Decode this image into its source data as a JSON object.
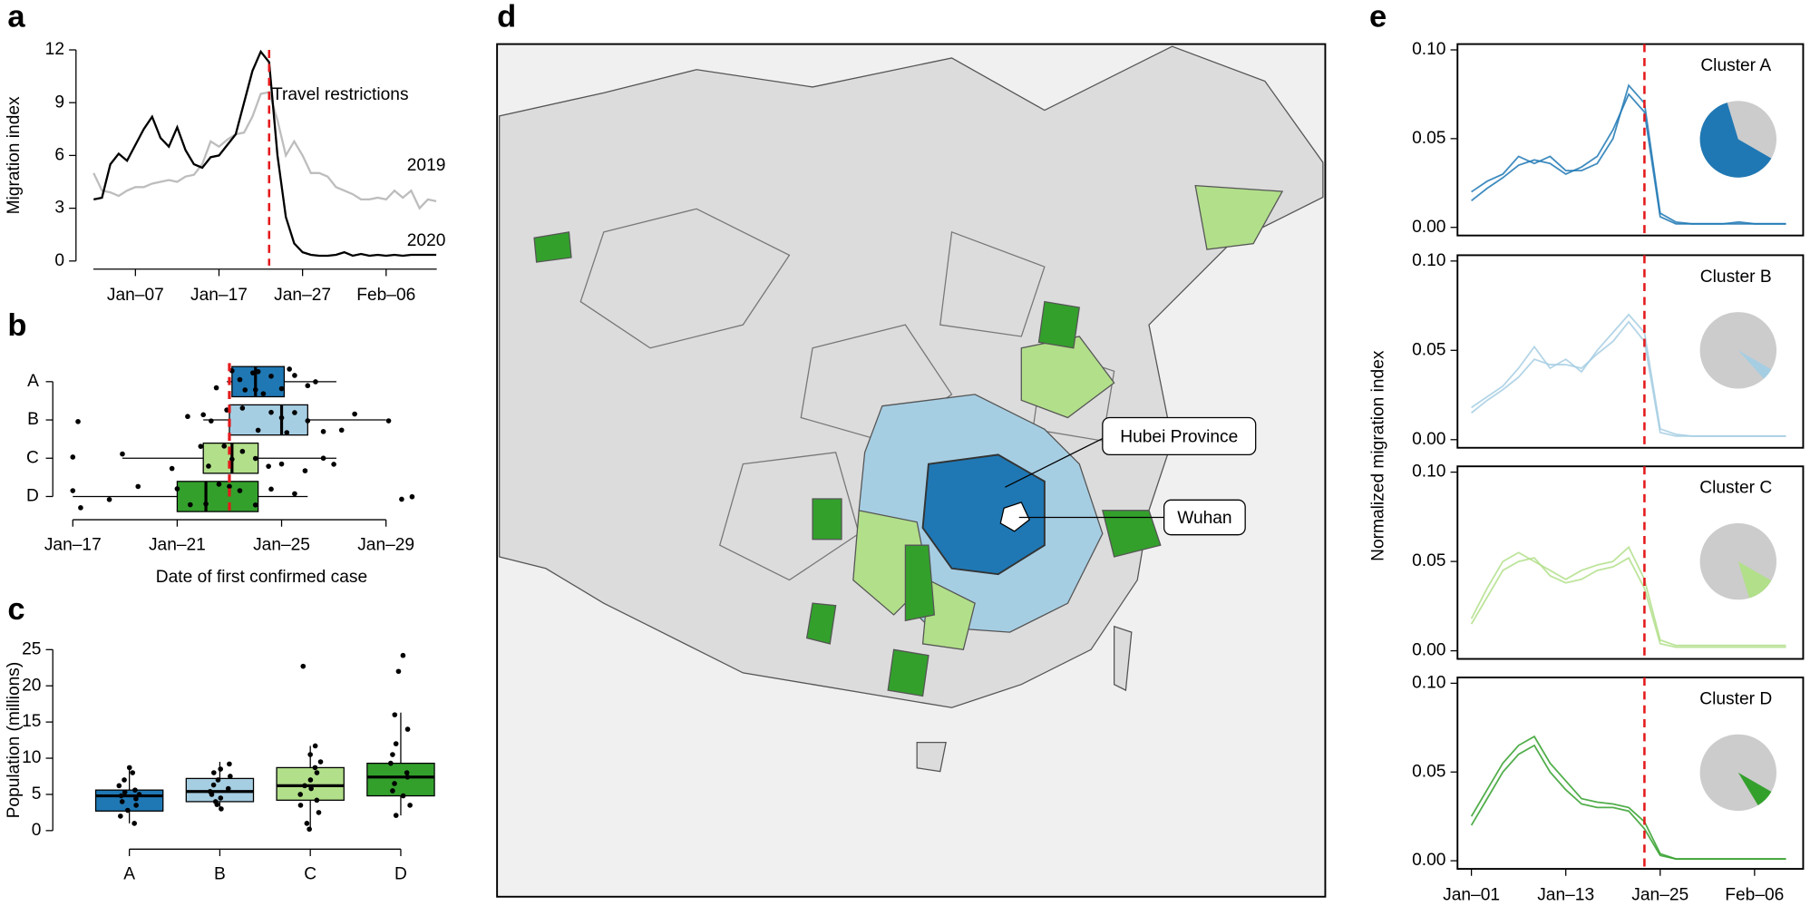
{
  "chart_data": [
    {
      "type": "line",
      "panel": "a",
      "ylabel": "Migration index",
      "xlim": [
        1,
        45
      ],
      "xticks": [
        {
          "value": 7,
          "label": "Jan–07"
        },
        {
          "value": 17,
          "label": "Jan–17"
        },
        {
          "value": 27,
          "label": "Jan–27"
        },
        {
          "value": 37,
          "label": "Feb–06"
        }
      ],
      "ylim": [
        0,
        12
      ],
      "yticks": [
        0,
        3,
        6,
        9,
        12
      ],
      "x": [
        2,
        3,
        4,
        5,
        6,
        7,
        8,
        9,
        10,
        11,
        12,
        13,
        14,
        15,
        16,
        17,
        18,
        19,
        20,
        21,
        22,
        23,
        24,
        25,
        26,
        27,
        28,
        29,
        30,
        31,
        32,
        33,
        34,
        35,
        36,
        37,
        38,
        39,
        40,
        41,
        42,
        43
      ],
      "series": [
        {
          "name": "2019",
          "color": "#bdbdbd",
          "values": [
            5.0,
            4.0,
            3.9,
            3.7,
            4.0,
            4.2,
            4.2,
            4.4,
            4.5,
            4.6,
            4.5,
            4.8,
            4.9,
            5.5,
            6.8,
            6.5,
            6.9,
            7.2,
            7.3,
            8.2,
            9.5,
            9.6,
            8.0,
            6.0,
            6.8,
            6.0,
            5.0,
            5.0,
            4.8,
            4.2,
            4.0,
            3.8,
            3.5,
            3.5,
            3.6,
            3.5,
            4.0,
            3.6,
            4.0,
            3.0,
            3.5,
            3.4
          ]
        },
        {
          "name": "2020",
          "color": "#000000",
          "values": [
            3.5,
            3.6,
            5.5,
            6.1,
            5.7,
            6.6,
            7.5,
            8.2,
            7.0,
            6.5,
            7.6,
            6.3,
            5.5,
            5.3,
            5.9,
            6.0,
            6.6,
            7.2,
            9.0,
            10.8,
            11.9,
            11.3,
            6.0,
            2.5,
            1.0,
            0.5,
            0.35,
            0.3,
            0.3,
            0.35,
            0.5,
            0.3,
            0.4,
            0.3,
            0.35,
            0.3,
            0.35,
            0.3,
            0.35,
            0.35,
            0.35,
            0.35
          ]
        }
      ],
      "vline": {
        "x": 23,
        "color": "#e41a1c",
        "label": "Travel restrictions"
      }
    },
    {
      "type": "boxplot",
      "orientation": "horizontal",
      "panel": "b",
      "categories": [
        "A",
        "B",
        "C",
        "D"
      ],
      "colors": [
        "#1f78b4",
        "#a6cee3",
        "#b2df8a",
        "#33a02c"
      ],
      "boxes": [
        {
          "whislo": 22.9,
          "q1": 23.1,
          "med": 24.0,
          "q3": 25.1,
          "whishi": 27.1
        },
        {
          "whislo": 22.0,
          "q1": 23.0,
          "med": 25.0,
          "q3": 26.0,
          "whishi": 29.0
        },
        {
          "whislo": 18.9,
          "q1": 22.0,
          "med": 23.1,
          "q3": 24.1,
          "whishi": 27.1
        },
        {
          "whislo": 17.0,
          "q1": 21.0,
          "med": 22.1,
          "q3": 24.1,
          "whishi": 26.0
        }
      ],
      "points": [
        [
          22.5,
          23.1,
          23.4,
          23.6,
          23.9,
          24.0,
          24.1,
          24.3,
          24.6,
          25.0,
          25.3,
          25.5,
          26.0,
          26.3
        ],
        [
          17.2,
          21.4,
          22.0,
          22.3,
          22.9,
          23.5,
          24.1,
          24.6,
          25.0,
          25.2,
          25.5,
          26.0,
          26.6,
          27.3,
          27.8,
          29.1
        ],
        [
          17.0,
          18.9,
          20.8,
          21.9,
          22.2,
          22.8,
          23.1,
          23.5,
          24.0,
          24.5,
          25.0,
          25.9,
          26.6,
          27.0
        ],
        [
          17.0,
          17.3,
          18.4,
          19.5,
          21.0,
          21.5,
          22.1,
          22.6,
          23.0,
          23.4,
          24.0,
          24.6,
          25.5,
          29.6,
          30.0
        ]
      ],
      "xlim": [
        16.5,
        30.5
      ],
      "xticks": [
        {
          "value": 17,
          "label": "Jan–17"
        },
        {
          "value": 21,
          "label": "Jan–21"
        },
        {
          "value": 25,
          "label": "Jan–25"
        },
        {
          "value": 29,
          "label": "Jan–29"
        }
      ],
      "xlabel": "Date of first confirmed case",
      "vline": {
        "x": 23,
        "color": "#e41a1c"
      }
    },
    {
      "type": "boxplot",
      "orientation": "vertical",
      "panel": "c",
      "categories": [
        "A",
        "B",
        "C",
        "D"
      ],
      "colors": [
        "#1f78b4",
        "#a6cee3",
        "#b2df8a",
        "#33a02c"
      ],
      "boxes": [
        {
          "whislo": 1.0,
          "q1": 2.7,
          "med": 4.8,
          "q3": 5.6,
          "whishi": 8.7
        },
        {
          "whislo": 3.0,
          "q1": 4.0,
          "med": 5.4,
          "q3": 7.2,
          "whishi": 9.5
        },
        {
          "whislo": 0.2,
          "q1": 4.2,
          "med": 6.2,
          "q3": 8.7,
          "whishi": 11.7
        },
        {
          "whislo": 2.1,
          "q1": 4.8,
          "med": 7.4,
          "q3": 9.3,
          "whishi": 16.3
        }
      ],
      "points": [
        [
          1.0,
          2.0,
          2.8,
          3.5,
          4.0,
          4.4,
          4.8,
          5.0,
          5.3,
          5.6,
          6.2,
          7.0,
          8.0,
          8.7
        ],
        [
          3.0,
          3.6,
          4.0,
          4.5,
          5.0,
          5.4,
          5.8,
          6.3,
          7.0,
          7.5,
          8.0,
          8.5,
          9.2
        ],
        [
          0.2,
          1.0,
          2.5,
          3.5,
          4.2,
          5.0,
          5.8,
          6.2,
          7.0,
          8.0,
          8.7,
          9.5,
          10.5,
          11.7,
          22.7
        ],
        [
          2.1,
          3.5,
          4.8,
          5.5,
          6.5,
          7.4,
          8.0,
          9.3,
          10.5,
          12.0,
          14.0,
          16.0,
          22.0,
          24.2
        ]
      ],
      "ylim": [
        0,
        25
      ],
      "yticks": [
        0,
        5,
        10,
        15,
        20,
        25
      ],
      "ylabel": "Population (millions)"
    },
    {
      "type": "map",
      "panel": "d",
      "annotations": [
        "Hubei Province",
        "Wuhan"
      ]
    },
    {
      "type": "line",
      "panel": "e",
      "title": "Cluster A",
      "ylabel": "Normalized migration index",
      "xlim": [
        1,
        42
      ],
      "ylim": [
        0,
        0.1
      ],
      "yticks": [
        {
          "value": 0,
          "label": "0.00"
        },
        {
          "value": 0.05,
          "label": "0.05"
        },
        {
          "value": 0.1,
          "label": "0.10"
        }
      ],
      "x": [
        1,
        3,
        5,
        7,
        9,
        11,
        13,
        15,
        17,
        19,
        21,
        23,
        25,
        27,
        29,
        31,
        33,
        35,
        37,
        39,
        41
      ],
      "series": [
        {
          "color": "#1f78b4",
          "values": [
            0.02,
            0.026,
            0.03,
            0.04,
            0.036,
            0.04,
            0.032,
            0.032,
            0.036,
            0.05,
            0.08,
            0.07,
            0.008,
            0.003,
            0.002,
            0.002,
            0.002,
            0.003,
            0.002,
            0.002,
            0.002
          ]
        },
        {
          "color": "#1f78b4",
          "values": [
            0.015,
            0.022,
            0.028,
            0.035,
            0.038,
            0.036,
            0.03,
            0.034,
            0.04,
            0.055,
            0.075,
            0.065,
            0.006,
            0.002,
            0.002,
            0.002,
            0.002,
            0.002,
            0.002,
            0.002,
            0.002
          ]
        }
      ],
      "vline": {
        "x": 23,
        "color": "#e41a1c"
      },
      "pie_share": 62,
      "pie_colors": [
        "#1f78b4",
        "#cccccc"
      ]
    },
    {
      "type": "line",
      "title": "Cluster B",
      "xlim": [
        1,
        42
      ],
      "ylim": [
        0,
        0.1
      ],
      "yticks": [
        {
          "value": 0,
          "label": "0.00"
        },
        {
          "value": 0.05,
          "label": "0.05"
        },
        {
          "value": 0.1,
          "label": "0.10"
        }
      ],
      "x": [
        1,
        3,
        5,
        7,
        9,
        11,
        13,
        15,
        17,
        19,
        21,
        23,
        25,
        27,
        29,
        31,
        33,
        35,
        37,
        39,
        41
      ],
      "series": [
        {
          "color": "#a6cee3",
          "values": [
            0.018,
            0.024,
            0.03,
            0.04,
            0.052,
            0.04,
            0.045,
            0.038,
            0.05,
            0.06,
            0.07,
            0.06,
            0.006,
            0.003,
            0.002,
            0.002,
            0.002,
            0.002,
            0.002,
            0.002,
            0.002
          ]
        },
        {
          "color": "#a6cee3",
          "values": [
            0.015,
            0.022,
            0.028,
            0.035,
            0.045,
            0.042,
            0.042,
            0.04,
            0.048,
            0.055,
            0.066,
            0.055,
            0.004,
            0.002,
            0.002,
            0.002,
            0.002,
            0.002,
            0.002,
            0.002,
            0.002
          ]
        }
      ],
      "vline": {
        "x": 23,
        "color": "#e41a1c"
      },
      "pie_share": 5,
      "pie_colors": [
        "#a6cee3",
        "#cccccc"
      ]
    },
    {
      "type": "line",
      "title": "Cluster C",
      "xlim": [
        1,
        42
      ],
      "ylim": [
        0,
        0.1
      ],
      "yticks": [
        {
          "value": 0,
          "label": "0.00"
        },
        {
          "value": 0.05,
          "label": "0.05"
        },
        {
          "value": 0.1,
          "label": "0.10"
        }
      ],
      "x": [
        1,
        3,
        5,
        7,
        9,
        11,
        13,
        15,
        17,
        19,
        21,
        23,
        25,
        27,
        29,
        31,
        33,
        35,
        37,
        39,
        41
      ],
      "series": [
        {
          "color": "#b2df8a",
          "values": [
            0.018,
            0.035,
            0.05,
            0.055,
            0.05,
            0.045,
            0.04,
            0.045,
            0.048,
            0.05,
            0.058,
            0.04,
            0.006,
            0.003,
            0.003,
            0.003,
            0.003,
            0.003,
            0.003,
            0.003,
            0.003
          ]
        },
        {
          "color": "#b2df8a",
          "values": [
            0.015,
            0.03,
            0.045,
            0.05,
            0.052,
            0.042,
            0.038,
            0.04,
            0.045,
            0.047,
            0.052,
            0.035,
            0.004,
            0.002,
            0.002,
            0.002,
            0.002,
            0.002,
            0.002,
            0.002,
            0.002
          ]
        }
      ],
      "vline": {
        "x": 23,
        "color": "#e41a1c"
      },
      "pie_share": 12,
      "pie_colors": [
        "#b2df8a",
        "#cccccc"
      ]
    },
    {
      "type": "line",
      "title": "Cluster D",
      "xlim": [
        1,
        42
      ],
      "ylim": [
        0,
        0.1
      ],
      "xticks": [
        {
          "value": 1,
          "label": "Jan–01"
        },
        {
          "value": 13,
          "label": "Jan–13"
        },
        {
          "value": 25,
          "label": "Jan–25"
        },
        {
          "value": 37,
          "label": "Feb–06"
        }
      ],
      "yticks": [
        {
          "value": 0,
          "label": "0.00"
        },
        {
          "value": 0.05,
          "label": "0.05"
        },
        {
          "value": 0.1,
          "label": "0.10"
        }
      ],
      "x": [
        1,
        3,
        5,
        7,
        9,
        11,
        13,
        15,
        17,
        19,
        21,
        23,
        25,
        27,
        29,
        31,
        33,
        35,
        37,
        39,
        41
      ],
      "series": [
        {
          "color": "#33a02c",
          "values": [
            0.025,
            0.04,
            0.055,
            0.065,
            0.07,
            0.055,
            0.045,
            0.035,
            0.033,
            0.032,
            0.03,
            0.022,
            0.004,
            0.001,
            0.001,
            0.001,
            0.001,
            0.001,
            0.001,
            0.001,
            0.001
          ]
        },
        {
          "color": "#33a02c",
          "values": [
            0.02,
            0.035,
            0.05,
            0.06,
            0.065,
            0.05,
            0.04,
            0.032,
            0.03,
            0.03,
            0.028,
            0.018,
            0.003,
            0.001,
            0.001,
            0.001,
            0.001,
            0.001,
            0.001,
            0.001,
            0.001
          ]
        }
      ],
      "vline": {
        "x": 23,
        "color": "#e41a1c"
      },
      "pie_share": 8,
      "pie_colors": [
        "#33a02c",
        "#cccccc"
      ]
    }
  ]
}
